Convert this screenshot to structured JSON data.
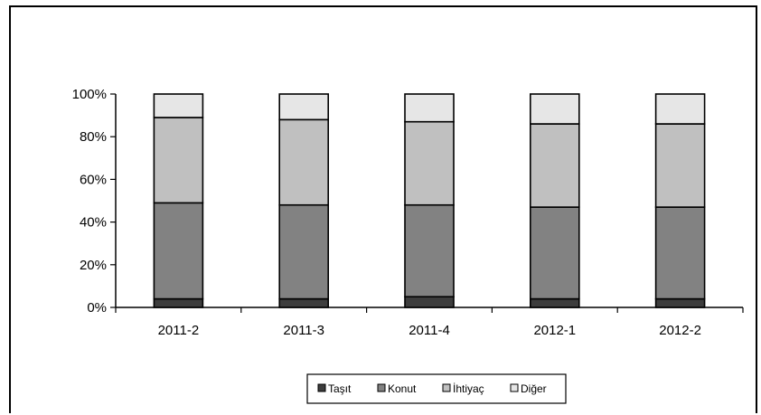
{
  "chart_data": {
    "type": "bar",
    "stacked": true,
    "percent_stacked": true,
    "categories": [
      "2011-2",
      "2011-3",
      "2011-4",
      "2012-1",
      "2012-2"
    ],
    "series": [
      {
        "name": "Taşıt",
        "color": "#3d3d3d",
        "values": [
          4,
          4,
          5,
          4,
          4
        ]
      },
      {
        "name": "Konut",
        "color": "#828282",
        "values": [
          45,
          44,
          43,
          43,
          43
        ]
      },
      {
        "name": "İhtiyaç",
        "color": "#c0c0c0",
        "values": [
          40,
          40,
          39,
          39,
          39
        ]
      },
      {
        "name": "Diğer",
        "color": "#e6e6e6",
        "values": [
          11,
          12,
          13,
          14,
          14
        ]
      }
    ],
    "ylim": [
      0,
      100
    ],
    "yticks": [
      "0%",
      "20%",
      "40%",
      "60%",
      "80%",
      "100%"
    ],
    "grid": false,
    "legend": "bottom"
  }
}
